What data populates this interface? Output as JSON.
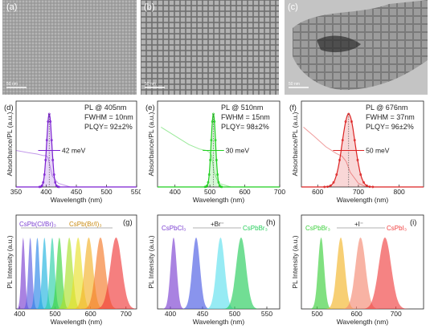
{
  "tem_images": [
    {
      "panel": "(a)",
      "scale_bar": "50 nm"
    },
    {
      "panel": "(b)",
      "scale_bar": "50 nm"
    },
    {
      "panel": "(c)",
      "scale_bar": "50 nm"
    }
  ],
  "colors": {
    "purple": "#7b1fd1",
    "green": "#1fcf1f",
    "red": "#dc2222",
    "axis": "#222222",
    "tem_bg_a": "#8f8f8f",
    "tem_bg_b": "#8b8b8b",
    "tem_bg_c": "#a7a7a7"
  },
  "chart_data": [
    {
      "panel": "(d)",
      "type": "line",
      "annotation_lines": [
        "PL @ 405nm",
        "FWHM = 10nm",
        "PLQY= 92±2%"
      ],
      "fwhm_label": "42 meV",
      "xlabel": "Wavelength (nm)",
      "ylabel": "Absorbance/PL (a.u.)",
      "xlim": [
        350,
        550
      ],
      "xticks": [
        "350",
        "400",
        "450",
        "500",
        "550"
      ],
      "series": [
        {
          "kind": "pl",
          "center": 405,
          "fwhm": 10
        },
        {
          "kind": "absorbance",
          "x": [
            350,
            370,
            385,
            395,
            400,
            403,
            410,
            420,
            440
          ],
          "y": [
            0.5,
            0.47,
            0.45,
            0.43,
            0.43,
            0.4,
            0.15,
            0.05,
            0.0
          ]
        }
      ]
    },
    {
      "panel": "(e)",
      "type": "line",
      "annotation_lines": [
        "PL @ 510nm",
        "FWHM = 15nm",
        "PLQY= 98±2%"
      ],
      "fwhm_label": "30 meV",
      "xlabel": "Wavelength (nm)",
      "ylabel": "Absorbance/PL (a.u.)",
      "xlim": [
        350,
        700
      ],
      "xticks": [
        "400",
        "500",
        "600",
        "700"
      ],
      "series": [
        {
          "kind": "pl",
          "center": 510,
          "fwhm": 15
        },
        {
          "kind": "absorbance",
          "x": [
            360,
            400,
            440,
            470,
            490,
            500,
            505,
            512,
            525,
            560
          ],
          "y": [
            0.82,
            0.7,
            0.58,
            0.52,
            0.5,
            0.47,
            0.43,
            0.2,
            0.05,
            0.0
          ]
        }
      ]
    },
    {
      "panel": "(f)",
      "type": "line",
      "annotation_lines": [
        "PL @ 676nm",
        "FWHM = 37nm",
        "PLQY= 96±2%"
      ],
      "fwhm_label": "50 meV",
      "xlabel": "Wavelength (nm)",
      "ylabel": "Absorbance/PL (a.u.)",
      "xlim": [
        560,
        860
      ],
      "xticks": [
        "600",
        "700",
        "800"
      ],
      "series": [
        {
          "kind": "pl",
          "center": 676,
          "fwhm": 37
        },
        {
          "kind": "absorbance",
          "x": [
            565,
            590,
            620,
            645,
            660,
            670,
            680,
            700,
            720
          ],
          "y": [
            0.82,
            0.7,
            0.55,
            0.46,
            0.42,
            0.35,
            0.2,
            0.05,
            0.0
          ]
        }
      ]
    },
    {
      "panel": "(g)",
      "type": "area",
      "arrow_labels": [
        "CsPb(Cl/Br)₃",
        "CsPb(Br/I)₃"
      ],
      "xlabel": "Wavelength (nm)",
      "ylabel": "PL Intensity (a.u.)",
      "xlim": [
        390,
        730
      ],
      "xticks": [
        "400",
        "500",
        "600",
        "700"
      ],
      "peaks": [
        {
          "center": 410,
          "fwhm": 12,
          "color": "#7b3fd1"
        },
        {
          "center": 430,
          "fwhm": 13,
          "color": "#5a5ce0"
        },
        {
          "center": 450,
          "fwhm": 14,
          "color": "#2a86e8"
        },
        {
          "center": 470,
          "fwhm": 15,
          "color": "#21b3df"
        },
        {
          "center": 492,
          "fwhm": 16,
          "color": "#2ad0a8"
        },
        {
          "center": 512,
          "fwhm": 18,
          "color": "#3cd43c"
        },
        {
          "center": 540,
          "fwhm": 22,
          "color": "#a9e12a"
        },
        {
          "center": 565,
          "fwhm": 25,
          "color": "#e8e02a"
        },
        {
          "center": 595,
          "fwhm": 28,
          "color": "#f2b22a"
        },
        {
          "center": 628,
          "fwhm": 32,
          "color": "#f5792a"
        },
        {
          "center": 672,
          "fwhm": 38,
          "color": "#f03b3b"
        }
      ]
    },
    {
      "panel": "(h)",
      "type": "area",
      "arrow_labels": [
        "CsPbCl₃",
        "+Br⁻",
        "CsPbBr₃"
      ],
      "xlabel": "Wavelength (nm)",
      "ylabel": "PL Intensity (a.u.)",
      "xlim": [
        380,
        570
      ],
      "xticks": [
        "400",
        "450",
        "500",
        "550"
      ],
      "peaks": [
        {
          "center": 405,
          "fwhm": 11,
          "color": "#7b3fd1"
        },
        {
          "center": 440,
          "fwhm": 14,
          "color": "#4a5ae3"
        },
        {
          "center": 478,
          "fwhm": 15,
          "color": "#5fe0ee"
        },
        {
          "center": 510,
          "fwhm": 18,
          "color": "#25cd5a"
        }
      ]
    },
    {
      "panel": "(i)",
      "type": "area",
      "arrow_labels": [
        "CsPbBr₃",
        "+I⁻",
        "CsPbI₃"
      ],
      "xlabel": "Wavelength (nm)",
      "ylabel": "PL Intensity (a.u.)",
      "xlim": [
        460,
        770
      ],
      "xticks": [
        "500",
        "600",
        "700"
      ],
      "peaks": [
        {
          "center": 510,
          "fwhm": 18,
          "color": "#3ccf3c"
        },
        {
          "center": 560,
          "fwhm": 24,
          "color": "#f2b52a"
        },
        {
          "center": 610,
          "fwhm": 30,
          "color": "#f58a73"
        },
        {
          "center": 672,
          "fwhm": 37,
          "color": "#f04040"
        }
      ]
    }
  ]
}
